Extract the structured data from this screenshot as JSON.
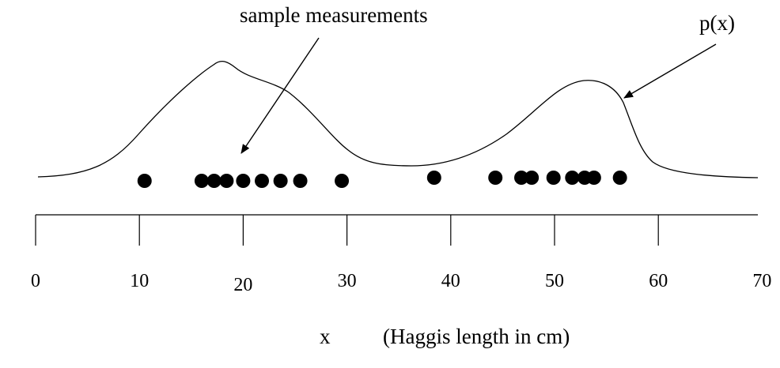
{
  "annotations": {
    "samples_label": "sample measurements",
    "curve_label": "p(x)"
  },
  "axis": {
    "variable": "x",
    "description": "(Haggis length in cm)",
    "range": [
      0,
      70
    ],
    "ticks": [
      {
        "value": 0,
        "label": "0"
      },
      {
        "value": 10,
        "label": "10"
      },
      {
        "value": 20,
        "label": "20"
      },
      {
        "value": 30,
        "label": "30"
      },
      {
        "value": 40,
        "label": "40"
      },
      {
        "value": 50,
        "label": "50"
      },
      {
        "value": 60,
        "label": "60"
      },
      {
        "value": 70,
        "label": "70"
      }
    ]
  },
  "samples": [
    10.5,
    16,
    17.2,
    18.4,
    20,
    21.8,
    23.6,
    25.5,
    29.5,
    38.4,
    44.3,
    46.8,
    47.8,
    49.9,
    51.7,
    52.9,
    53.8,
    56.3
  ],
  "colors": {
    "ink": "#000000",
    "background": "#ffffff"
  }
}
